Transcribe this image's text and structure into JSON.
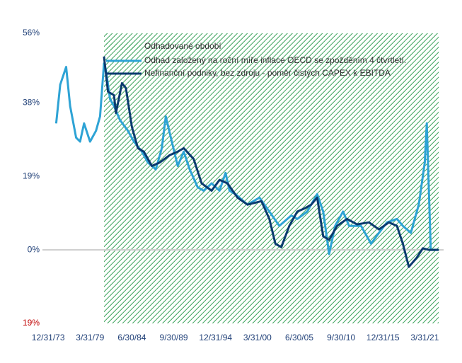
{
  "chart_data": {
    "type": "line",
    "ylim": [
      -19,
      56
    ],
    "yticks": [
      {
        "value": -19,
        "label": "19%"
      },
      {
        "value": 0,
        "label": "0%"
      },
      {
        "value": 19,
        "label": "19%"
      },
      {
        "value": 38,
        "label": "38%"
      },
      {
        "value": 56,
        "label": "56%"
      }
    ],
    "negative_tick_color": "#c00000",
    "xlim": [
      "6/30/71",
      "6/30/24"
    ],
    "xticks": [
      "12/31/73",
      "3/31/79",
      "6/30/84",
      "9/30/89",
      "12/31/94",
      "3/31/00",
      "6/30/05",
      "9/30/10",
      "12/31/15",
      "3/31/21"
    ],
    "estimated_period": {
      "name": "Odhadované období",
      "start": "12/31/80",
      "end": "12/31/22",
      "color": "#3aa35a"
    },
    "series": [
      {
        "name": "Odhad založený na roční míře inflace OECD se zpožděním 4 čtvrtletí.",
        "color": "#2ea3d5",
        "x": [
          "12/31/74",
          "6/30/75",
          "3/31/76",
          "9/30/76",
          "6/30/77",
          "12/31/77",
          "6/30/78",
          "3/31/79",
          "12/31/79",
          "6/30/80",
          "12/31/80",
          "3/31/81",
          "9/30/81",
          "3/31/82",
          "12/31/82",
          "12/31/83",
          "9/30/84",
          "9/30/85",
          "6/30/86",
          "6/30/87",
          "3/31/88",
          "9/30/88",
          "6/30/89",
          "3/31/90",
          "12/31/90",
          "9/30/91",
          "9/30/92",
          "6/30/93",
          "6/30/94",
          "6/30/95",
          "3/31/96",
          "9/30/96",
          "6/30/97",
          "12/31/98",
          "6/30/00",
          "9/30/01",
          "12/31/02",
          "6/30/04",
          "3/31/05",
          "6/30/06",
          "9/30/07",
          "6/30/08",
          "3/31/09",
          "12/31/09",
          "12/31/10",
          "9/30/11",
          "3/31/13",
          "6/30/14",
          "6/30/15",
          "6/30/16",
          "9/30/17",
          "6/30/18",
          "6/30/19",
          "6/30/20",
          "3/31/21",
          "6/30/21",
          "12/31/21",
          "12/31/22"
        ],
        "values": [
          32.7,
          42.7,
          47.3,
          37.2,
          29,
          28,
          32.7,
          28,
          30.8,
          34.5,
          48.2,
          46.4,
          39,
          37.2,
          33.6,
          30.8,
          28,
          25.4,
          22.6,
          20.8,
          26.3,
          34.5,
          28,
          21.7,
          25.4,
          20.8,
          16.2,
          15.3,
          17.2,
          15.3,
          19.9,
          15.3,
          14.4,
          11.7,
          13.5,
          9.9,
          6.2,
          8.9,
          8.0,
          9.9,
          14.4,
          9.9,
          -1.1,
          6.2,
          9.9,
          6.2,
          6.2,
          1.6,
          4.4,
          7.1,
          8.0,
          6.2,
          4.4,
          11.7,
          22.6,
          32.7,
          0,
          0
        ]
      },
      {
        "name": "Nefinanční podniky, bez zdroju - poměr čistých CAPEX k EBITDA",
        "color": "#0b3a6f",
        "x": [
          "12/31/80",
          "6/30/81",
          "3/31/82",
          "6/30/82",
          "3/31/83",
          "9/30/83",
          "6/30/84",
          "3/31/85",
          "12/31/85",
          "12/31/86",
          "12/31/87",
          "3/31/89",
          "3/31/90",
          "12/31/90",
          "3/31/92",
          "3/31/93",
          "6/30/94",
          "6/30/95",
          "6/30/96",
          "9/30/97",
          "12/31/98",
          "9/30/00",
          "9/30/01",
          "6/30/02",
          "3/31/03",
          "3/31/04",
          "3/31/05",
          "3/31/06",
          "12/31/06",
          "9/30/07",
          "6/30/08",
          "3/31/09",
          "3/31/10",
          "6/30/11",
          "9/30/12",
          "3/31/14",
          "6/30/15",
          "9/30/16",
          "9/30/17",
          "6/30/18",
          "3/31/19",
          "3/31/20",
          "12/31/20",
          "9/30/21",
          "12/31/22"
        ],
        "values": [
          50,
          40.9,
          40,
          35.4,
          43.1,
          41.8,
          31.8,
          26.3,
          25.4,
          21.7,
          22.6,
          24.5,
          25.4,
          26.3,
          23.5,
          17.2,
          15.3,
          18.1,
          17.2,
          13.5,
          11.7,
          12.6,
          8.0,
          1.6,
          0.7,
          6.2,
          9.9,
          10.8,
          11.7,
          13.5,
          3.5,
          2.6,
          6.2,
          8.0,
          6.6,
          7.1,
          5.3,
          7.1,
          6.2,
          1.6,
          -4.4,
          -2,
          0.4,
          0,
          0
        ]
      }
    ]
  }
}
